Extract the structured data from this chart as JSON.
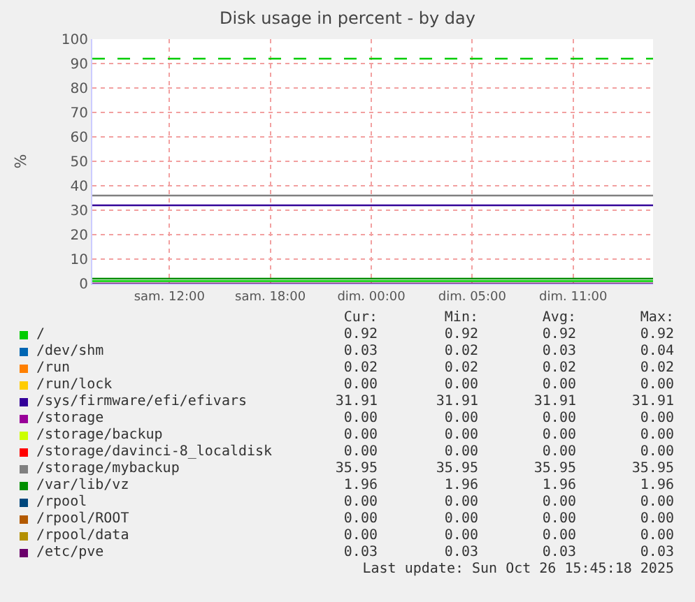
{
  "chart_data": {
    "type": "line",
    "title": "Disk usage in percent - by day",
    "ylabel": "%",
    "x": [
      "2025-10-25T05:25",
      "2025-10-26T14:45"
    ],
    "xlim": [
      "2025-10-25T05:25",
      "2025-10-26T14:45"
    ],
    "xticks": [
      {
        "value": "2025-10-25T10:00",
        "label": "sam. 12:00"
      },
      {
        "value": "2025-10-25T16:00",
        "label": "sam. 18:00"
      },
      {
        "value": "2025-10-25T22:00",
        "label": "dim. 00:00"
      },
      {
        "value": "2025-10-26T04:00",
        "label": "dim. 05:00"
      },
      {
        "value": "2025-10-26T10:00",
        "label": "dim. 11:00"
      }
    ],
    "ylim": [
      0,
      100
    ],
    "yticks": [
      0,
      10,
      20,
      30,
      40,
      50,
      60,
      70,
      80,
      90,
      100
    ],
    "grid": true,
    "legend": "bottom",
    "marker": "none",
    "line_style": "solid",
    "ref_lines": [
      {
        "axis": "y",
        "value": 92,
        "label": null,
        "color": "#00cc00",
        "line_style": "dashed"
      }
    ],
    "series": [
      {
        "name": "/",
        "color": "#00cc00",
        "values": [
          1,
          1
        ]
      },
      {
        "name": "/dev/shm",
        "color": "#0066b3",
        "values": [
          null,
          null
        ]
      },
      {
        "name": "/run",
        "color": "#ff8000",
        "values": [
          null,
          null
        ]
      },
      {
        "name": "/run/lock",
        "color": "#ffcc00",
        "values": [
          null,
          null
        ]
      },
      {
        "name": "/sys/firmware/efi/efivars",
        "color": "#330099",
        "values": [
          32,
          32
        ]
      },
      {
        "name": "/storage",
        "color": "#990099",
        "values": [
          null,
          null
        ]
      },
      {
        "name": "/storage/backup",
        "color": "#ccff00",
        "values": [
          null,
          null
        ]
      },
      {
        "name": "/storage/davinci-8_localdisk",
        "color": "#ff0000",
        "values": [
          null,
          null
        ]
      },
      {
        "name": "/storage/mybackup",
        "color": "#808080",
        "values": [
          36,
          36
        ]
      },
      {
        "name": "/var/lib/vz",
        "color": "#008f00",
        "values": [
          2,
          2
        ]
      },
      {
        "name": "/rpool",
        "color": "#00487d",
        "values": [
          null,
          null
        ]
      },
      {
        "name": "/rpool/ROOT",
        "color": "#b35a00",
        "values": [
          null,
          null
        ]
      },
      {
        "name": "/rpool/data",
        "color": "#b38f00",
        "values": [
          null,
          null
        ]
      },
      {
        "name": "/etc/pve",
        "color": "#6b006b",
        "values": [
          0,
          0
        ]
      }
    ],
    "annotations": [
      "Cur:",
      "Min:",
      "Avg:",
      "Max:",
      "0.92",
      "0.92",
      "0.92",
      "0.92",
      "0.03",
      "0.02",
      "0.03",
      "0.04",
      "0.02",
      "0.02",
      "0.02",
      "0.02",
      "0.00",
      "0.00",
      "0.00",
      "0.00",
      "31.91",
      "31.91",
      "31.91",
      "31.91",
      "0.00",
      "0.00",
      "0.00",
      "0.00",
      "0.00",
      "0.00",
      "0.00",
      "0.00",
      "0.00",
      "0.00",
      "0.00",
      "0.00",
      "35.95",
      "35.95",
      "35.95",
      "35.95",
      "1.96",
      "1.96",
      "1.96",
      "1.96",
      "0.00",
      "0.00",
      "0.00",
      "0.00",
      "0.00",
      "0.00",
      "0.00",
      "0.00",
      "0.00",
      "0.00",
      "0.00",
      "0.00",
      "0.03",
      "0.03",
      "0.03",
      "0.03",
      "Last update: Sun Oct 26 15:45:18 2025"
    ]
  }
}
